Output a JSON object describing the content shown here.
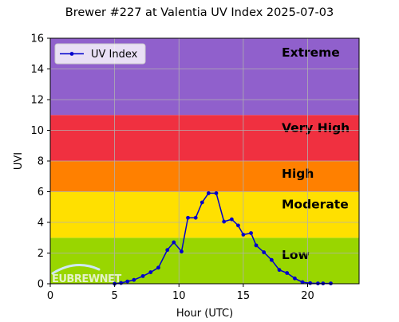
{
  "chart_data": {
    "type": "line",
    "title": "Brewer #227 at Valentia UV Index 2025-07-03",
    "xlabel": "Hour (UTC)",
    "ylabel": "UVI",
    "xlim": [
      0,
      24
    ],
    "ylim": [
      0,
      16
    ],
    "xticks": [
      0,
      5,
      10,
      15,
      20
    ],
    "yticks": [
      0,
      2,
      4,
      6,
      8,
      10,
      12,
      14,
      16
    ],
    "grid": true,
    "legend": {
      "placement": "top-left",
      "entries": [
        "UV Index"
      ]
    },
    "bands": [
      {
        "label": "Low",
        "from": 0,
        "to": 3,
        "color": "#99d600"
      },
      {
        "label": "Moderate",
        "from": 3,
        "to": 6,
        "color": "#ffe000"
      },
      {
        "label": "High",
        "from": 6,
        "to": 8,
        "color": "#ff8000"
      },
      {
        "label": "Very High",
        "from": 8,
        "to": 11,
        "color": "#f03040"
      },
      {
        "label": "Extreme",
        "from": 11,
        "to": 16,
        "color": "#9060cc"
      }
    ],
    "series": [
      {
        "name": "UV Index",
        "color": "#0000cc",
        "x": [
          5.0,
          5.5,
          6.0,
          6.5,
          7.2,
          7.8,
          8.4,
          9.1,
          9.6,
          10.2,
          10.7,
          11.3,
          11.8,
          12.3,
          12.9,
          13.5,
          14.1,
          14.6,
          15.0,
          15.6,
          16.0,
          16.6,
          17.2,
          17.8,
          18.4,
          19.0,
          19.6,
          20.2,
          20.8,
          21.2,
          21.8
        ],
        "y": [
          0.0,
          0.05,
          0.15,
          0.25,
          0.5,
          0.75,
          1.05,
          2.2,
          2.7,
          2.1,
          4.3,
          4.3,
          5.3,
          5.9,
          5.9,
          4.05,
          4.2,
          3.8,
          3.2,
          3.3,
          2.5,
          2.05,
          1.55,
          0.9,
          0.7,
          0.35,
          0.1,
          0.04,
          0.02,
          0.02,
          0.02
        ]
      }
    ]
  },
  "watermark": "EUBREWNET"
}
